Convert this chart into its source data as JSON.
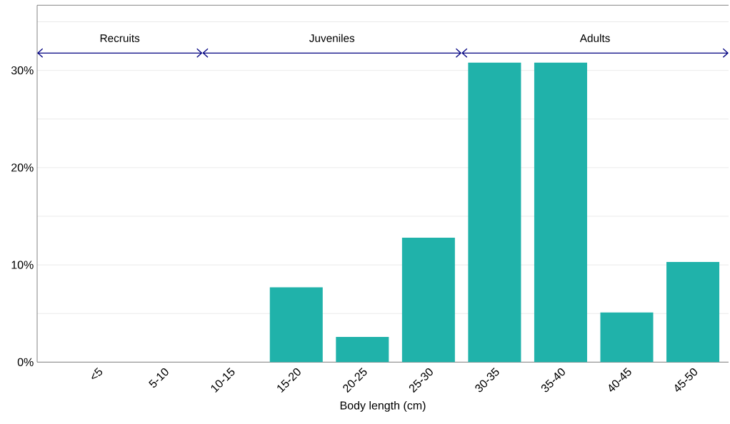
{
  "chart_data": {
    "type": "bar",
    "xlabel": "Body length (cm)",
    "categories": [
      "<5",
      "5-10",
      "10-15",
      "15-20",
      "20-25",
      "25-30",
      "30-35",
      "35-40",
      "40-45",
      "45-50"
    ],
    "values": [
      0,
      0,
      0,
      7.7,
      2.6,
      12.8,
      30.8,
      30.8,
      5.1,
      10.3
    ],
    "color": "#20b2aa",
    "ylim": [
      0,
      36.7
    ],
    "yticks": [
      {
        "value": 0,
        "label": "0%"
      },
      {
        "value": 5,
        "label": null
      },
      {
        "value": 10,
        "label": "10%"
      },
      {
        "value": 15,
        "label": null
      },
      {
        "value": 20,
        "label": "20%"
      },
      {
        "value": 25,
        "label": null
      },
      {
        "value": 30,
        "label": "30%"
      },
      {
        "value": 35,
        "label": null
      }
    ],
    "grid": "y",
    "annotations": [
      "Recruits",
      "Juveniles",
      "Adults"
    ]
  }
}
